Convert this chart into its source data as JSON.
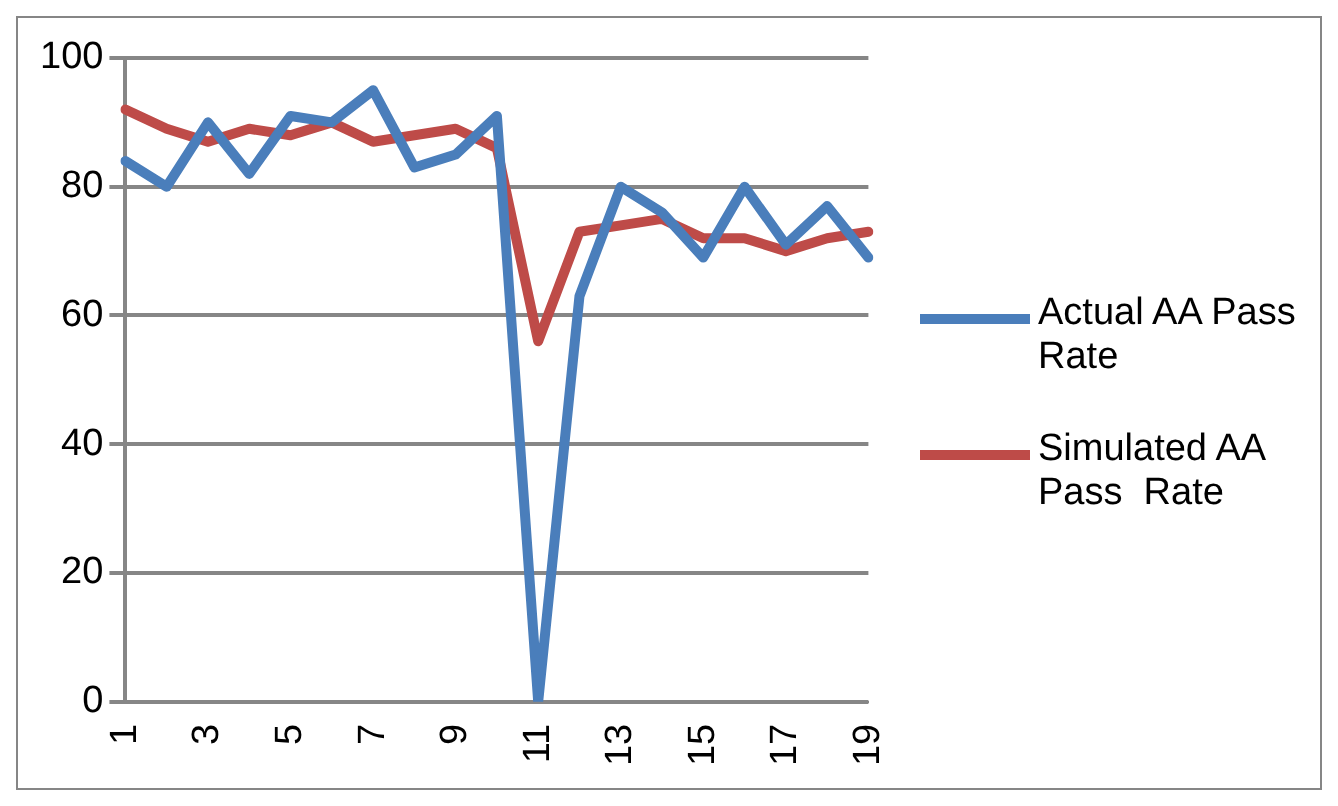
{
  "chart_data": {
    "type": "line",
    "categories": [
      "1",
      null,
      "3",
      null,
      "5",
      null,
      "7",
      null,
      "9",
      null,
      "11",
      null,
      "13",
      null,
      "15",
      null,
      "17",
      null,
      "19"
    ],
    "series": [
      {
        "name": "Actual AA Pass Rate",
        "color": "#4a7ebb",
        "values": [
          84,
          80,
          90,
          82,
          91,
          90,
          95,
          83,
          85,
          91,
          0,
          63,
          80,
          76,
          69,
          80,
          71,
          77,
          69
        ]
      },
      {
        "name": "Simulated AA Pass  Rate",
        "color": "#be4b48",
        "values": [
          92,
          89,
          87,
          89,
          88,
          90,
          87,
          88,
          89,
          86,
          56,
          73,
          74,
          75,
          72,
          72,
          70,
          72,
          73
        ]
      }
    ],
    "ylim": [
      0,
      100
    ],
    "yticks": [
      0,
      20,
      40,
      60,
      80,
      100
    ],
    "grid": "y",
    "legend": "right",
    "marker": "none",
    "line_style": "solid"
  }
}
